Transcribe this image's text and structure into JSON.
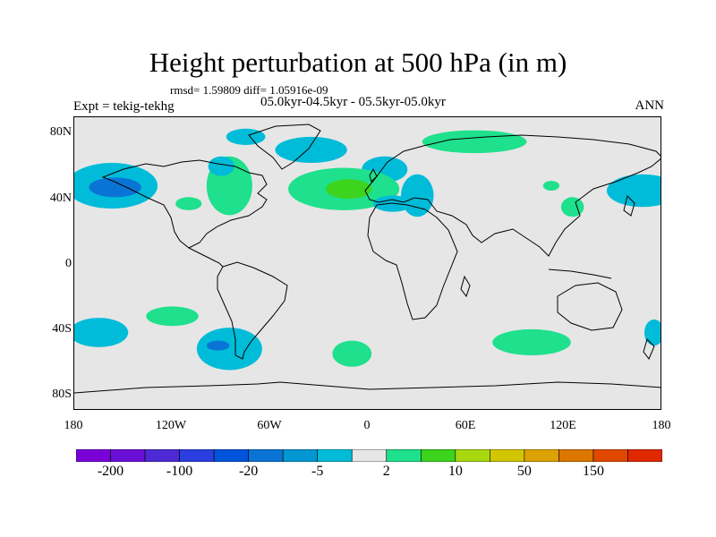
{
  "title": "Height perturbation at 500 hPa (in m)",
  "stats": "rmsd= 1.59809 diff= 1.05916e-09",
  "expt": "Expt = tekig-tekhg",
  "period": "05.0kyr-04.5kyr - 05.5kyr-05.0kyr",
  "season": "ANN",
  "map": {
    "lon_range": [
      -180,
      180
    ],
    "lat_range": [
      -90,
      90
    ],
    "background": "#e6e6e6",
    "coastline_color": "#000000",
    "lat_ticks": [
      "80N",
      "40N",
      "0",
      "40S",
      "80S"
    ],
    "lon_ticks": [
      "180",
      "120W",
      "60W",
      "0",
      "60E",
      "120E",
      "180"
    ],
    "anomaly_regions": [
      {
        "lon": -157,
        "lat": 48,
        "rx": 28,
        "ry": 14,
        "sign": "neg",
        "level": "-5"
      },
      {
        "lon": -155,
        "lat": 47,
        "rx": 16,
        "ry": 6,
        "sign": "neg",
        "level": "-20"
      },
      {
        "lon": -85,
        "lat": 48,
        "rx": 14,
        "ry": 18,
        "sign": "pos",
        "level": "2"
      },
      {
        "lon": -90,
        "lat": 60,
        "rx": 8,
        "ry": 6,
        "sign": "neg",
        "level": "-5"
      },
      {
        "lon": -75,
        "lat": 78,
        "rx": 12,
        "ry": 5,
        "sign": "neg",
        "level": "-5"
      },
      {
        "lon": -35,
        "lat": 70,
        "rx": 22,
        "ry": 8,
        "sign": "neg",
        "level": "-5"
      },
      {
        "lon": 65,
        "lat": 75,
        "rx": 32,
        "ry": 7,
        "sign": "pos",
        "level": "2"
      },
      {
        "lon": 10,
        "lat": 58,
        "rx": 14,
        "ry": 8,
        "sign": "neg",
        "level": "-5"
      },
      {
        "lon": -15,
        "lat": 46,
        "rx": 34,
        "ry": 13,
        "sign": "pos",
        "level": "2"
      },
      {
        "lon": -12,
        "lat": 46,
        "rx": 14,
        "ry": 6,
        "sign": "pos",
        "level": "10"
      },
      {
        "lon": 30,
        "lat": 42,
        "rx": 10,
        "ry": 13,
        "sign": "neg",
        "level": "-5"
      },
      {
        "lon": 15,
        "lat": 37,
        "rx": 12,
        "ry": 5,
        "sign": "neg",
        "level": "-5"
      },
      {
        "lon": -110,
        "lat": 37,
        "rx": 8,
        "ry": 4,
        "sign": "pos",
        "level": "2"
      },
      {
        "lon": 125,
        "lat": 35,
        "rx": 7,
        "ry": 6,
        "sign": "pos",
        "level": "2"
      },
      {
        "lon": 112,
        "lat": 48,
        "rx": 5,
        "ry": 3,
        "sign": "pos",
        "level": "2"
      },
      {
        "lon": 168,
        "lat": 45,
        "rx": 22,
        "ry": 10,
        "sign": "neg",
        "level": "-5"
      },
      {
        "lon": -165,
        "lat": -42,
        "rx": 18,
        "ry": 9,
        "sign": "neg",
        "level": "-5"
      },
      {
        "lon": -120,
        "lat": -32,
        "rx": 16,
        "ry": 6,
        "sign": "pos",
        "level": "2"
      },
      {
        "lon": -85,
        "lat": -52,
        "rx": 20,
        "ry": 13,
        "sign": "neg",
        "level": "-5"
      },
      {
        "lon": -92,
        "lat": -50,
        "rx": 7,
        "ry": 3,
        "sign": "neg",
        "level": "-20"
      },
      {
        "lon": -10,
        "lat": -55,
        "rx": 12,
        "ry": 8,
        "sign": "pos",
        "level": "2"
      },
      {
        "lon": 100,
        "lat": -48,
        "rx": 24,
        "ry": 8,
        "sign": "pos",
        "level": "2"
      },
      {
        "lon": 175,
        "lat": -42,
        "rx": 6,
        "ry": 8,
        "sign": "neg",
        "level": "-5"
      }
    ]
  },
  "colorbar": {
    "colors": [
      "#7a00d8",
      "#6a0fd6",
      "#4d2ad5",
      "#2b3fe0",
      "#0054dc",
      "#0a74d6",
      "#0296d2",
      "#00bcd8",
      "#e6e6e6",
      "#1fe08c",
      "#3cd41c",
      "#a8d80e",
      "#d2c600",
      "#dca200",
      "#dc7600",
      "#e04800",
      "#e02800"
    ],
    "labels": [
      "-200",
      "-100",
      "-20",
      "-5",
      "2",
      "10",
      "50",
      "150"
    ]
  }
}
